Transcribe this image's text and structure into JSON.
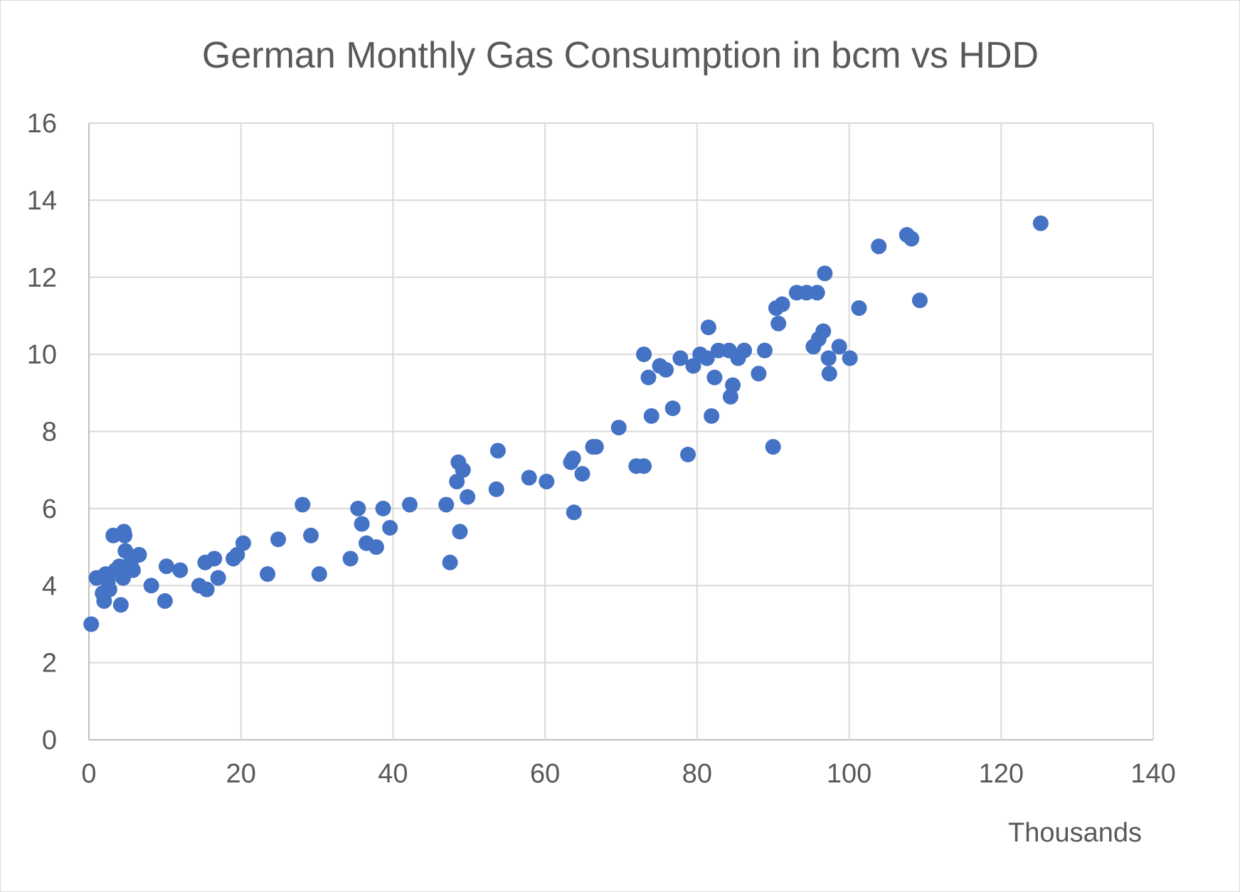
{
  "chart_data": {
    "type": "scatter",
    "title": "German Monthly Gas Consumption in bcm vs HDD",
    "xlabel": "",
    "ylabel": "",
    "x_display_unit": "Thousands",
    "xlim": [
      0,
      140
    ],
    "ylim": [
      0,
      16
    ],
    "x_ticks": [
      "0",
      "20",
      "40",
      "60",
      "80",
      "100",
      "120",
      "140"
    ],
    "y_ticks": [
      "0",
      "2",
      "4",
      "6",
      "8",
      "10",
      "12",
      "14",
      "16"
    ],
    "grid": true,
    "legend": "none",
    "marker_color": "#4472C4",
    "series": [
      {
        "points": [
          [
            0.3,
            3.0
          ],
          [
            1.0,
            4.2
          ],
          [
            1.8,
            3.8
          ],
          [
            2.0,
            3.6
          ],
          [
            2.2,
            4.3
          ],
          [
            2.5,
            4.1
          ],
          [
            2.7,
            3.9
          ],
          [
            3.2,
            5.3
          ],
          [
            3.5,
            4.4
          ],
          [
            4.0,
            4.5
          ],
          [
            4.2,
            3.5
          ],
          [
            4.5,
            4.2
          ],
          [
            4.6,
            5.4
          ],
          [
            4.7,
            5.3
          ],
          [
            4.8,
            4.9
          ],
          [
            5.5,
            4.6
          ],
          [
            5.8,
            4.4
          ],
          [
            6.6,
            4.8
          ],
          [
            8.2,
            4.0
          ],
          [
            10.2,
            4.5
          ],
          [
            10.0,
            3.6
          ],
          [
            12.0,
            4.4
          ],
          [
            14.5,
            4.0
          ],
          [
            15.3,
            4.6
          ],
          [
            15.5,
            3.9
          ],
          [
            16.5,
            4.7
          ],
          [
            17.0,
            4.2
          ],
          [
            19.0,
            4.7
          ],
          [
            19.5,
            4.8
          ],
          [
            20.3,
            5.1
          ],
          [
            23.5,
            4.3
          ],
          [
            24.9,
            5.2
          ],
          [
            28.1,
            6.1
          ],
          [
            29.2,
            5.3
          ],
          [
            30.3,
            4.3
          ],
          [
            34.4,
            4.7
          ],
          [
            35.4,
            6.0
          ],
          [
            35.9,
            5.6
          ],
          [
            36.5,
            5.1
          ],
          [
            37.8,
            5.0
          ],
          [
            38.7,
            6.0
          ],
          [
            39.6,
            5.5
          ],
          [
            42.2,
            6.1
          ],
          [
            47.0,
            6.1
          ],
          [
            47.5,
            4.6
          ],
          [
            48.4,
            6.7
          ],
          [
            48.6,
            7.2
          ],
          [
            48.8,
            5.4
          ],
          [
            49.2,
            7.0
          ],
          [
            49.8,
            6.3
          ],
          [
            53.6,
            6.5
          ],
          [
            53.8,
            7.5
          ],
          [
            57.9,
            6.8
          ],
          [
            60.2,
            6.7
          ],
          [
            63.4,
            7.2
          ],
          [
            63.7,
            7.3
          ],
          [
            63.8,
            5.9
          ],
          [
            64.9,
            6.9
          ],
          [
            66.3,
            7.6
          ],
          [
            66.7,
            7.6
          ],
          [
            69.7,
            8.1
          ],
          [
            72.0,
            7.1
          ],
          [
            73.0,
            7.1
          ],
          [
            73.0,
            10.0
          ],
          [
            73.6,
            9.4
          ],
          [
            74.0,
            8.4
          ],
          [
            75.1,
            9.7
          ],
          [
            75.9,
            9.6
          ],
          [
            76.8,
            8.6
          ],
          [
            77.8,
            9.9
          ],
          [
            78.8,
            7.4
          ],
          [
            79.5,
            9.7
          ],
          [
            80.4,
            10.0
          ],
          [
            81.3,
            9.9
          ],
          [
            81.5,
            10.7
          ],
          [
            81.9,
            8.4
          ],
          [
            82.3,
            9.4
          ],
          [
            82.8,
            10.1
          ],
          [
            84.2,
            10.1
          ],
          [
            84.4,
            8.9
          ],
          [
            84.7,
            9.2
          ],
          [
            85.4,
            9.9
          ],
          [
            86.2,
            10.1
          ],
          [
            88.1,
            9.5
          ],
          [
            88.9,
            10.1
          ],
          [
            90.0,
            7.6
          ],
          [
            90.4,
            11.2
          ],
          [
            90.7,
            10.8
          ],
          [
            91.2,
            11.3
          ],
          [
            93.1,
            11.6
          ],
          [
            94.4,
            11.6
          ],
          [
            95.3,
            10.2
          ],
          [
            95.8,
            11.6
          ],
          [
            96.0,
            10.4
          ],
          [
            96.6,
            10.6
          ],
          [
            96.8,
            12.1
          ],
          [
            97.3,
            9.9
          ],
          [
            97.4,
            9.5
          ],
          [
            98.7,
            10.2
          ],
          [
            100.1,
            9.9
          ],
          [
            101.3,
            11.2
          ],
          [
            103.9,
            12.8
          ],
          [
            107.6,
            13.1
          ],
          [
            108.2,
            13.0
          ],
          [
            109.3,
            11.4
          ],
          [
            125.2,
            13.4
          ]
        ]
      }
    ]
  }
}
